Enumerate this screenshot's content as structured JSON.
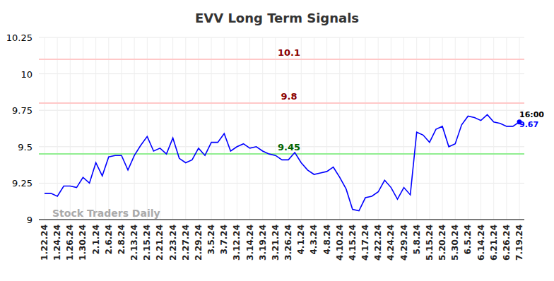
{
  "chart_data": {
    "type": "line",
    "title": "EVV Long Term Signals",
    "watermark": "Stock Traders Daily",
    "time_label": "16:00",
    "categories": [
      "1.22.24",
      null,
      "1.24.24",
      null,
      "1.26.24",
      null,
      "1.30.24",
      null,
      "2.1.24",
      null,
      "2.6.24",
      null,
      "2.8.24",
      null,
      "2.13.24",
      null,
      "2.15.24",
      null,
      "2.21.24",
      null,
      "2.23.24",
      null,
      "2.27.24",
      null,
      "2.29.24",
      null,
      "3.5.24",
      null,
      "3.7.24",
      null,
      "3.12.24",
      null,
      "3.14.24",
      null,
      "3.19.24",
      null,
      "3.21.24",
      null,
      "3.26.24",
      null,
      "4.1.24",
      null,
      "4.3.24",
      null,
      "4.8.24",
      null,
      "4.10.24",
      null,
      "4.15.24",
      null,
      "4.17.24",
      null,
      "4.22.24",
      null,
      "4.24.24",
      null,
      "4.29.24",
      null,
      "5.8.24",
      null,
      "5.15.24",
      null,
      "5.20.24",
      null,
      "5.30.24",
      null,
      "6.5.24",
      null,
      "6.14.24",
      null,
      "6.21.24",
      null,
      "6.26.24",
      null,
      "7.19.24"
    ],
    "series": [
      {
        "name": "EVV",
        "color": "#0000ff",
        "values": [
          9.18,
          9.18,
          9.16,
          9.23,
          9.23,
          9.22,
          9.29,
          9.25,
          9.39,
          9.3,
          9.43,
          9.44,
          9.44,
          9.34,
          9.44,
          9.51,
          9.57,
          9.47,
          9.49,
          9.45,
          9.56,
          9.42,
          9.39,
          9.41,
          9.49,
          9.44,
          9.53,
          9.53,
          9.59,
          9.47,
          9.5,
          9.52,
          9.49,
          9.5,
          9.47,
          9.45,
          9.44,
          9.41,
          9.41,
          9.46,
          9.39,
          9.34,
          9.31,
          9.32,
          9.33,
          9.36,
          9.29,
          9.21,
          9.07,
          9.06,
          9.15,
          9.16,
          9.19,
          9.27,
          9.22,
          9.14,
          9.22,
          9.17,
          9.6,
          9.58,
          9.53,
          9.62,
          9.64,
          9.5,
          9.52,
          9.65,
          9.71,
          9.7,
          9.68,
          9.72,
          9.67,
          9.66,
          9.64,
          9.64,
          9.67
        ]
      }
    ],
    "levels": [
      {
        "value": 10.1,
        "label": "10.1",
        "color": "#8b0000",
        "line_color": "#ffc8c8"
      },
      {
        "value": 9.8,
        "label": "9.8",
        "color": "#8b0000",
        "line_color": "#ffc8c8"
      },
      {
        "value": 9.45,
        "label": "9.45",
        "color": "#006400",
        "line_color": "#90ee90"
      }
    ],
    "ylim": [
      9,
      10.25
    ],
    "yticks": [
      9,
      9.25,
      9.5,
      9.75,
      10,
      10.25
    ],
    "grid": true
  }
}
